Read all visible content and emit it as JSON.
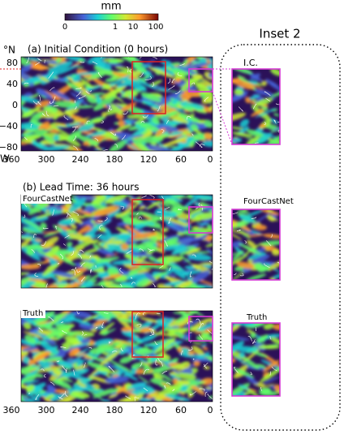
{
  "colorbar": {
    "label": "mm",
    "ticks": [
      "0",
      "1",
      "10",
      "100"
    ]
  },
  "panel_a": {
    "title": "(a) Initial Condition (0 hours)",
    "y_axis_label": "°N",
    "y_ticks": [
      "80",
      "40",
      "0",
      "−40",
      "−80"
    ],
    "x_axis_label": "W",
    "x_ticks": [
      "360",
      "300",
      "240",
      "180",
      "120",
      "60",
      "0"
    ]
  },
  "panel_b": {
    "title": "(b) Lead Time: 36 hours",
    "maps": [
      "FourCastNet",
      "Truth"
    ],
    "x_ticks": [
      "360",
      "300",
      "240",
      "180",
      "120",
      "60",
      "0"
    ]
  },
  "inset": {
    "title": "Inset 2",
    "labels": [
      "I.C.",
      "FourCastNet",
      "Truth"
    ]
  }
}
